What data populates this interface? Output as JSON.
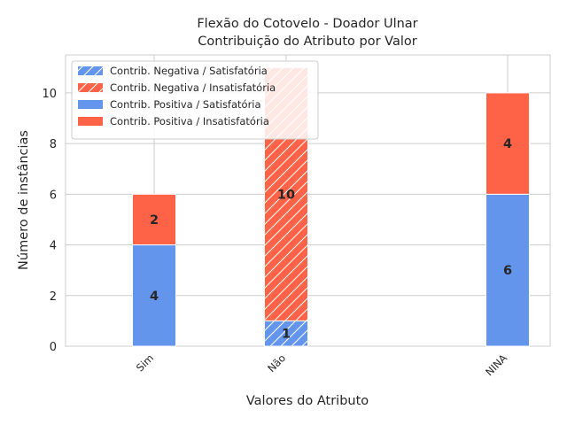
{
  "chart_data": {
    "type": "bar",
    "title_line1": "Flexão do Cotovelo - Doador Ulnar",
    "title_line2": "Contribuição do Atributo por Valor",
    "xlabel": "Valores do Atributo",
    "ylabel": "Número de instâncias",
    "categories": [
      "Sim",
      "Não",
      "NINA"
    ],
    "ylim": [
      0,
      11.5
    ],
    "yticks": [
      0,
      2,
      4,
      6,
      8,
      10
    ],
    "grid": true,
    "legend_position": "top-left",
    "series": [
      {
        "name": "Contrib. Negativa / Satisfatória",
        "values": [
          0,
          1,
          0
        ],
        "color": "#6495ED",
        "hatched": true
      },
      {
        "name": "Contrib. Negativa / Insatisfatória",
        "values": [
          0,
          10,
          0
        ],
        "color": "#FF6347",
        "hatched": true
      },
      {
        "name": "Contrib. Positiva / Satisfatória",
        "values": [
          4,
          0,
          6
        ],
        "color": "#6495ED",
        "hatched": false
      },
      {
        "name": "Contrib. Positiva / Insatisfatória",
        "values": [
          2,
          0,
          4
        ],
        "color": "#FF6347",
        "hatched": false
      }
    ]
  }
}
